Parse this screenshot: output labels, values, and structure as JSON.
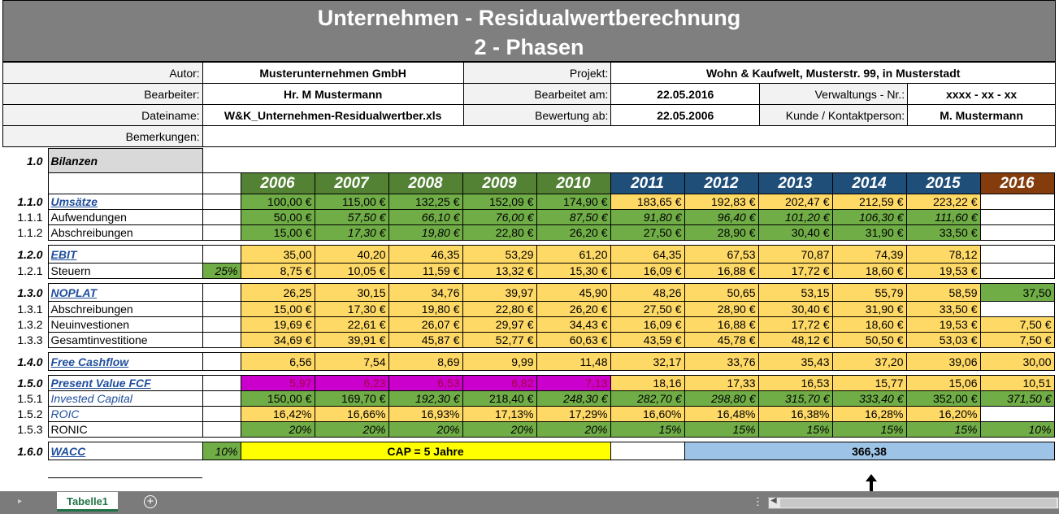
{
  "title": {
    "line1": "Unternehmen - Residualwertberechnung",
    "line2": "2 - Phasen"
  },
  "header": {
    "autor_label": "Autor:",
    "autor": "Musterunternehmen GmbH",
    "projekt_label": "Projekt:",
    "projekt": "Wohn & Kaufwelt, Musterstr. 99, in Musterstadt",
    "bearbeiter_label": "Bearbeiter:",
    "bearbeiter": "Hr. M Mustermann",
    "bearbeitet_label": "Bearbeitet am:",
    "bearbeitet": "22.05.2016",
    "verwaltung_label": "Verwaltungs - Nr.:",
    "verwaltung": "xxxx - xx - xx",
    "datei_label": "Dateiname:",
    "datei": "W&K_Unternehmen-Residualwertber.xls",
    "bewertung_label": "Bewertung ab:",
    "bewertung": "22.05.2006",
    "kunde_label": "Kunde / Kontaktperson:",
    "kunde": "M. Mustermann",
    "bemerkung_label": "Bemerkungen:"
  },
  "section": {
    "num": "1.0",
    "label": "Bilanzen"
  },
  "years": [
    "2006",
    "2007",
    "2008",
    "2009",
    "2010",
    "2011",
    "2012",
    "2013",
    "2014",
    "2015",
    "2016"
  ],
  "colors": {
    "phase1": "#548235",
    "phase2": "#1f4e79",
    "residual": "#843c0c",
    "pv_highlight": "#cc00cc",
    "cap": "#ffff00",
    "result": "#9dc3e6"
  },
  "rows": {
    "umsaetze": {
      "num": "1.1.0",
      "label": "Umsätze",
      "v": [
        "100,00 €",
        "115,00 €",
        "132,25 €",
        "152,09 €",
        "174,90 €",
        "183,65 €",
        "192,83 €",
        "202,47 €",
        "212,59 €",
        "223,22 €",
        ""
      ]
    },
    "aufwend": {
      "num": "1.1.1",
      "label": "Aufwendungen",
      "v": [
        "50,00 €",
        "57,50 €",
        "66,10 €",
        "76,00 €",
        "87,50 €",
        "91,80 €",
        "96,40 €",
        "101,20 €",
        "106,30 €",
        "111,60 €",
        ""
      ]
    },
    "abschr": {
      "num": "1.1.2",
      "label": "Abschreibungen",
      "v": [
        "15,00 €",
        "17,30 €",
        "19,80 €",
        "22,80 €",
        "26,20 €",
        "27,50 €",
        "28,90 €",
        "30,40 €",
        "31,90 €",
        "33,50 €",
        ""
      ]
    },
    "ebit": {
      "num": "1.2.0",
      "label": "EBIT",
      "v": [
        "35,00",
        "40,20",
        "46,35",
        "53,29",
        "61,20",
        "64,35",
        "67,53",
        "70,87",
        "74,39",
        "78,12",
        ""
      ]
    },
    "steuern": {
      "num": "1.2.1",
      "label": "Steuern",
      "pct": "25%",
      "v": [
        "8,75 €",
        "10,05 €",
        "11,59 €",
        "13,32 €",
        "15,30 €",
        "16,09 €",
        "16,88 €",
        "17,72 €",
        "18,60 €",
        "19,53 €",
        ""
      ]
    },
    "noplat": {
      "num": "1.3.0",
      "label": "NOPLAT",
      "v": [
        "26,25",
        "30,15",
        "34,76",
        "39,97",
        "45,90",
        "48,26",
        "50,65",
        "53,15",
        "55,79",
        "58,59",
        "37,50"
      ]
    },
    "abschr2": {
      "num": "1.3.1",
      "label": "Abschreibungen",
      "v": [
        "15,00 €",
        "17,30 €",
        "19,80 €",
        "22,80 €",
        "26,20 €",
        "27,50 €",
        "28,90 €",
        "30,40 €",
        "31,90 €",
        "33,50 €",
        ""
      ]
    },
    "neuinv": {
      "num": "1.3.2",
      "label": "Neuinvestionen",
      "v": [
        "19,69 €",
        "22,61 €",
        "26,07 €",
        "29,97 €",
        "34,43 €",
        "16,09 €",
        "16,88 €",
        "17,72 €",
        "18,60 €",
        "19,53 €",
        "7,50 €"
      ]
    },
    "gesinv": {
      "num": "1.3.3",
      "label": "Gesamtinvestitione",
      "v": [
        "34,69 €",
        "39,91 €",
        "45,87 €",
        "52,77 €",
        "60,63 €",
        "43,59 €",
        "45,78 €",
        "48,12 €",
        "50,50 €",
        "53,03 €",
        "7,50 €"
      ]
    },
    "fcf": {
      "num": "1.4.0",
      "label": "Free Cashflow",
      "v": [
        "6,56",
        "7,54",
        "8,69",
        "9,99",
        "11,48",
        "32,17",
        "33,76",
        "35,43",
        "37,20",
        "39,06",
        "30,00"
      ]
    },
    "pvfcf": {
      "num": "1.5.0",
      "label": "Present Value FCF",
      "v": [
        "5,97",
        "6,23",
        "6,53",
        "6,82",
        "7,13",
        "18,16",
        "17,33",
        "16,53",
        "15,77",
        "15,06",
        "10,51"
      ]
    },
    "invcap": {
      "num": "1.5.1",
      "label": "Invested Capital",
      "v": [
        "150,00 €",
        "169,70 €",
        "192,30 €",
        "218,40 €",
        "248,30 €",
        "282,70 €",
        "298,80 €",
        "315,70 €",
        "333,40 €",
        "352,00 €",
        "371,50 €"
      ]
    },
    "roic": {
      "num": "1.5.2",
      "label": "ROIC",
      "v": [
        "16,42%",
        "16,66%",
        "16,93%",
        "17,13%",
        "17,29%",
        "16,60%",
        "16,48%",
        "16,38%",
        "16,28%",
        "16,20%",
        ""
      ]
    },
    "ronic": {
      "num": "1.5.3",
      "label": "RONIC",
      "v": [
        "20%",
        "20%",
        "20%",
        "20%",
        "20%",
        "15%",
        "15%",
        "15%",
        "15%",
        "15%",
        "10%"
      ]
    },
    "wacc": {
      "num": "1.6.0",
      "label": "WACC",
      "pct": "10%",
      "cap": "CAP = 5 Jahre",
      "result": "366,38"
    }
  },
  "sheet": {
    "tab": "Tabelle1"
  },
  "icons": {
    "add_sheet": "plus-circle-icon",
    "arrow": "arrow-up-icon"
  }
}
